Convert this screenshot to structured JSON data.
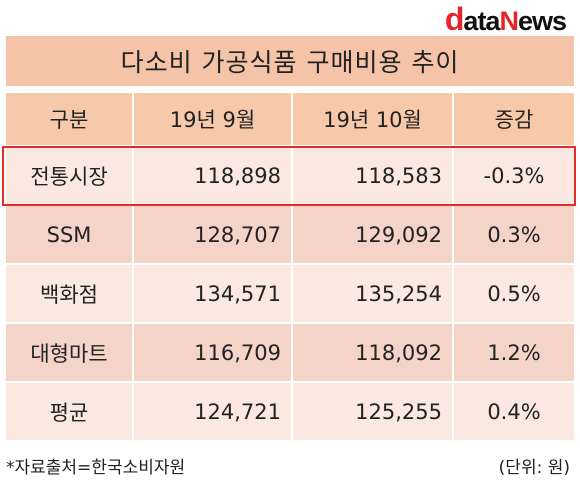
{
  "logo": {
    "d": "d",
    "ata": "ata",
    "n": "N",
    "ews": "ews"
  },
  "title": "다소비 가공식품 구매비용 추이",
  "table": {
    "headers": [
      "구분",
      "19년 9월",
      "19년 10월",
      "증감"
    ],
    "rows": [
      [
        "전통시장",
        "118,898",
        "118,583",
        "-0.3%"
      ],
      [
        "SSM",
        "128,707",
        "129,092",
        "0.3%"
      ],
      [
        "백화점",
        "134,571",
        "135,254",
        "0.5%"
      ],
      [
        "대형마트",
        "116,709",
        "118,092",
        "1.2%"
      ],
      [
        "평균",
        "124,721",
        "125,255",
        "0.4%"
      ]
    ]
  },
  "footer": {
    "source": "*자료출처=한국소비자원",
    "unit": "(단위: 원)"
  },
  "colors": {
    "title_bg": "#f4c3a8",
    "header_bg": "#f7c9ab",
    "row_light": "#fbe9e1",
    "row_dark": "#f4d4c8",
    "highlight": "#e42a2a",
    "logo_red": "#e3262b"
  }
}
